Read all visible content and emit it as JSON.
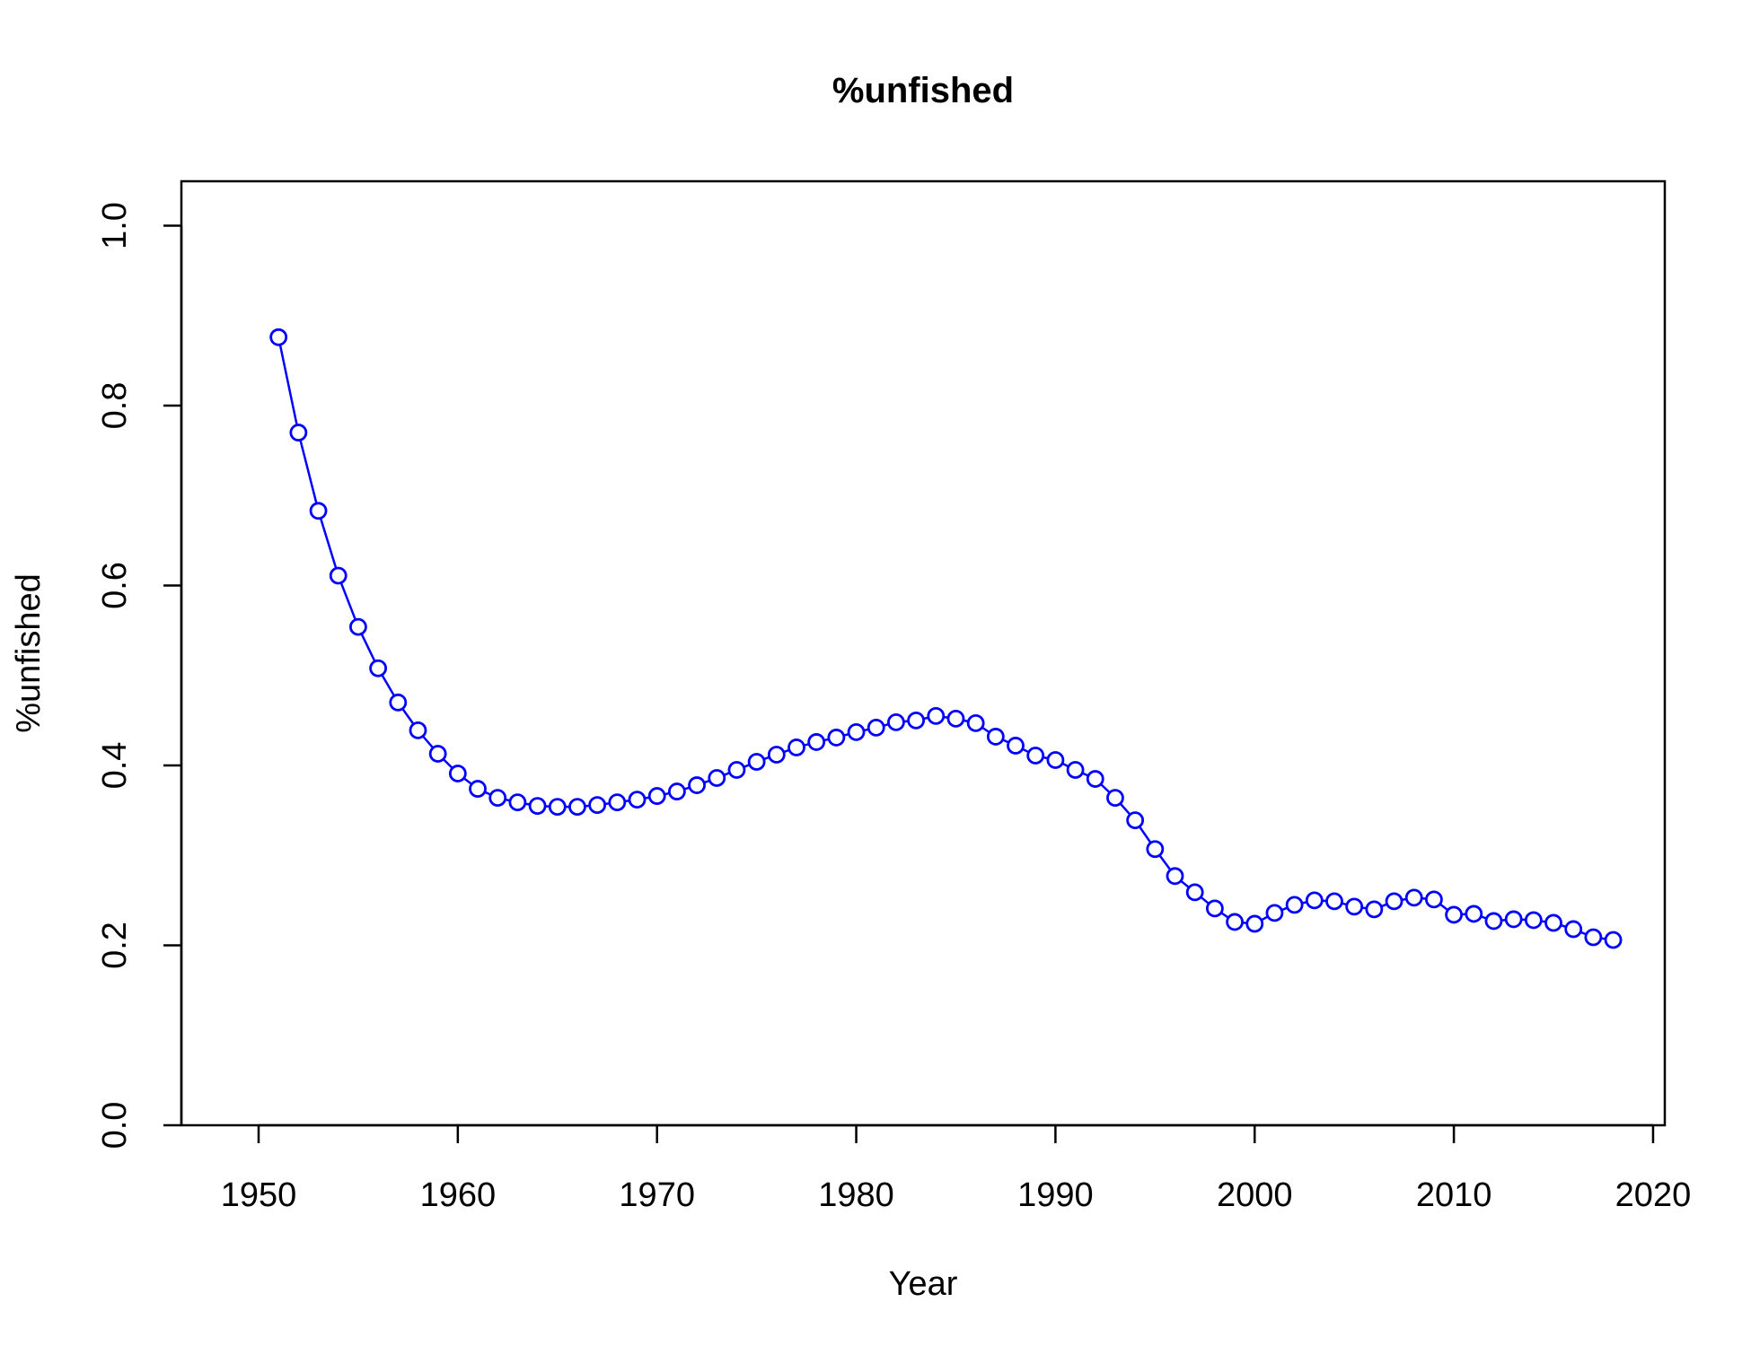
{
  "chart_data": {
    "type": "line",
    "title": "%unfished",
    "xlabel": "Year",
    "ylabel": "%unfished",
    "xlim": [
      1946,
      2021
    ],
    "ylim": [
      0,
      1.05
    ],
    "x_ticks": [
      1950,
      1960,
      1970,
      1980,
      1990,
      2000,
      2010,
      2020
    ],
    "y_ticks": [
      0.0,
      0.2,
      0.4,
      0.6,
      0.8,
      1.0
    ],
    "y_tick_labels": [
      "0.0",
      "0.2",
      "0.4",
      "0.6",
      "0.8",
      "1.0"
    ],
    "grid": false,
    "series": [
      {
        "color": "#0000ff",
        "marker": "circle",
        "x": [
          1951,
          1952,
          1953,
          1954,
          1955,
          1956,
          1957,
          1958,
          1959,
          1960,
          1961,
          1962,
          1963,
          1964,
          1965,
          1966,
          1967,
          1968,
          1969,
          1970,
          1971,
          1972,
          1973,
          1974,
          1975,
          1976,
          1977,
          1978,
          1979,
          1980,
          1981,
          1982,
          1983,
          1984,
          1985,
          1986,
          1987,
          1988,
          1989,
          1990,
          1991,
          1992,
          1993,
          1994,
          1995,
          1996,
          1997,
          1998,
          1999,
          2000,
          2001,
          2002,
          2003,
          2004,
          2005,
          2006,
          2007,
          2008,
          2009,
          2010,
          2011,
          2012,
          2013,
          2014,
          2015,
          2016,
          2017,
          2018
        ],
        "y": [
          0.876,
          0.77,
          0.683,
          0.611,
          0.554,
          0.508,
          0.47,
          0.439,
          0.413,
          0.391,
          0.374,
          0.364,
          0.359,
          0.355,
          0.354,
          0.354,
          0.356,
          0.359,
          0.362,
          0.366,
          0.371,
          0.378,
          0.386,
          0.395,
          0.404,
          0.412,
          0.42,
          0.426,
          0.431,
          0.437,
          0.442,
          0.448,
          0.45,
          0.455,
          0.452,
          0.447,
          0.432,
          0.422,
          0.411,
          0.406,
          0.395,
          0.385,
          0.364,
          0.339,
          0.307,
          0.277,
          0.259,
          0.241,
          0.226,
          0.224,
          0.236,
          0.245,
          0.25,
          0.249,
          0.243,
          0.24,
          0.249,
          0.253,
          0.251,
          0.234,
          0.235,
          0.227,
          0.229,
          0.228,
          0.225,
          0.218,
          0.209,
          0.206
        ]
      }
    ]
  }
}
